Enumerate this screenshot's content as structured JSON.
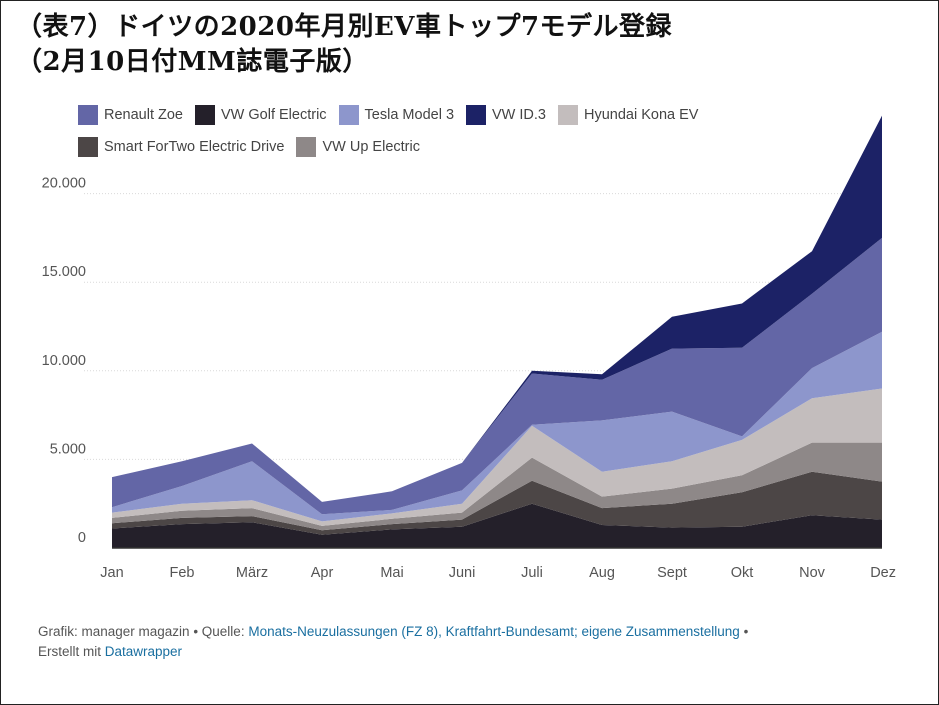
{
  "title_line1": "（表7）ドイツの2020年月別EV車トップ7モデル登録",
  "title_line2": "（2月10日付MM誌電子版）",
  "legend": [
    {
      "label": "Renault Zoe",
      "color": "#6366a6"
    },
    {
      "label": "VW Golf Electric",
      "color": "#24202a"
    },
    {
      "label": "Tesla Model 3",
      "color": "#8d96cc"
    },
    {
      "label": "VW ID.3",
      "color": "#1c2266"
    },
    {
      "label": "Hyundai Kona EV",
      "color": "#c3bdbd"
    },
    {
      "label": "Smart ForTwo Electric Drive",
      "color": "#4c4646"
    },
    {
      "label": "VW Up Electric",
      "color": "#8e8888"
    }
  ],
  "footer": {
    "prefix": "Grafik: manager magazin • Quelle: ",
    "source_link": "Monats-Neuzulassungen (FZ 8), Kraftfahrt-Bundesamt; eigene Zusammenstellung",
    "mid": " •",
    "line2_prefix": "Erstellt mit ",
    "tool_link": "Datawrapper"
  },
  "chart_data": {
    "type": "area",
    "stacked": true,
    "categories": [
      "Jan",
      "Feb",
      "März",
      "Apr",
      "Mai",
      "Juni",
      "Juli",
      "Aug",
      "Sept",
      "Okt",
      "Nov",
      "Dez"
    ],
    "ylim": [
      0,
      25000
    ],
    "yticks": [
      0,
      5000,
      10000,
      15000,
      20000
    ],
    "ytick_labels": [
      "0",
      "5.000",
      "10.000",
      "15.000",
      "20.000"
    ],
    "grid": true,
    "legend_position": "top-left",
    "series": [
      {
        "name": "VW Golf Electric",
        "color": "#24202a",
        "values": [
          1100,
          1350,
          1450,
          750,
          1050,
          1200,
          2500,
          1300,
          1150,
          1200,
          1850,
          1600
        ]
      },
      {
        "name": "Smart ForTwo Electric Drive",
        "color": "#4c4646",
        "values": [
          300,
          350,
          350,
          250,
          300,
          400,
          1300,
          950,
          1350,
          1950,
          2450,
          2150
        ]
      },
      {
        "name": "VW Up Electric",
        "color": "#8e8888",
        "values": [
          300,
          400,
          450,
          250,
          300,
          400,
          1300,
          650,
          850,
          950,
          1650,
          2200
        ]
      },
      {
        "name": "Hyundai Kona EV",
        "color": "#c3bdbd",
        "values": [
          300,
          400,
          450,
          250,
          300,
          500,
          1800,
          1400,
          1550,
          2000,
          2500,
          3050
        ]
      },
      {
        "name": "Tesla Model 3",
        "color": "#8d96cc",
        "values": [
          300,
          1000,
          2200,
          400,
          200,
          750,
          50,
          2900,
          2800,
          200,
          1700,
          3200
        ]
      },
      {
        "name": "Renault Zoe",
        "color": "#6366a6",
        "values": [
          1700,
          1400,
          1000,
          700,
          1050,
          1550,
          2900,
          2300,
          3550,
          5000,
          4200,
          5300
        ]
      },
      {
        "name": "VW ID.3",
        "color": "#1c2266",
        "values": [
          0,
          0,
          0,
          0,
          0,
          0,
          150,
          300,
          1800,
          2500,
          2400,
          6900
        ]
      }
    ]
  }
}
